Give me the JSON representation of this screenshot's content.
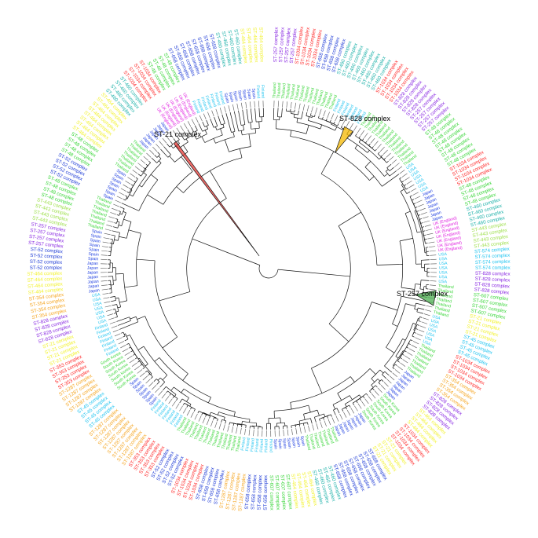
{
  "clade_labels": {
    "st21": "ST-21 complex",
    "st828": "ST-828 complex",
    "st257": "ST-257 complex"
  },
  "highlight_colors": {
    "st21": "#e53935",
    "st828": "#f5b800",
    "st257": "#4caf50"
  },
  "ring_palette": {
    "complex": [
      "#f2f230",
      "#21c4f0",
      "#3bd63b",
      "#1f3cd6",
      "#8a2be2",
      "#ff2a2a",
      "#f5a623",
      "#a0e050",
      "#20b2aa"
    ],
    "country": [
      "#e020e0",
      "#e020e0",
      "#e020e0",
      "#2040e0",
      "#21c4f0",
      "#3bd63b"
    ],
    "tips": "#555555"
  },
  "country_terms": [
    "UK (England)",
    "USA",
    "South Korea",
    "Spain",
    "Finland",
    "Thailand",
    "Japan"
  ],
  "complex_terms": [
    "ST-21 complex",
    "ST-45 complex",
    "ST-48 complex",
    "ST-52 complex",
    "ST-257 complex",
    "ST-353 complex",
    "ST-354 complex",
    "ST-443 complex",
    "ST-460 complex",
    "ST-464 complex",
    "ST-574 complex",
    "ST-607 complex",
    "ST-658 complex",
    "ST-828 complex",
    "ST-1034 complex",
    "ST-1287 complex"
  ]
}
